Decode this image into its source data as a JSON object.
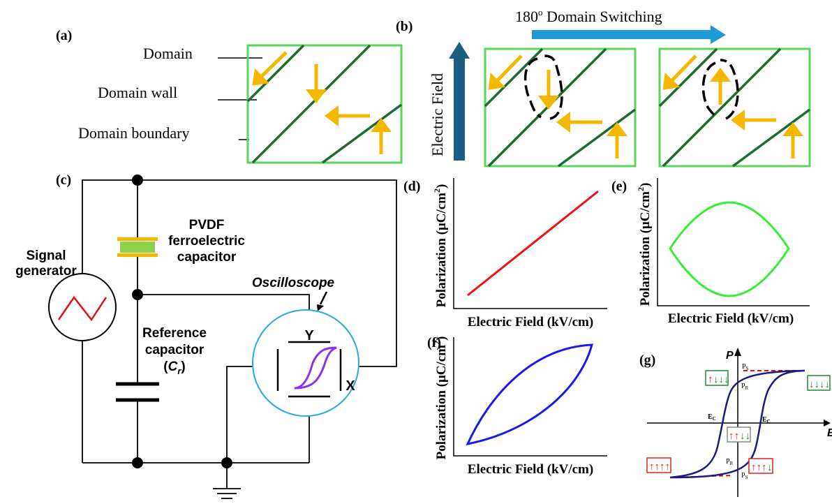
{
  "panels": {
    "a": "(a)",
    "b": "(b)",
    "c": "(c)",
    "d": "(d)",
    "e": "(e)",
    "f": "(f)",
    "g": "(g)"
  },
  "domain_labels": {
    "domain": "Domain",
    "wall": "Domain wall",
    "boundary": "Domain boundary"
  },
  "switching": {
    "title": "180",
    "title_sup": "o",
    "title_rest": " Domain Switching",
    "field": "Electric Field"
  },
  "circuit": {
    "signal": [
      "Signal",
      "generator"
    ],
    "pvdf": [
      "PVDF",
      "ferroelectric",
      "capacitor"
    ],
    "oscilloscope": "Oscilloscope",
    "reference": [
      "Reference",
      "capacitor"
    ],
    "cr_open": "(",
    "cr_c": "C",
    "cr_r": "r",
    "cr_close": ")",
    "y": "Y",
    "x": "X"
  },
  "plots": {
    "ylabel_main": "Polarization (μC/cm",
    "ylabel_sup": "2",
    "ylabel_close": ")",
    "xlabel": "Electric Field (kV/cm)"
  },
  "hysteresis": {
    "p": "P",
    "e": "E",
    "ps_top": "P",
    "ps_top_sub": "S",
    "pr_top": "P",
    "pr_top_sub": "R",
    "ec_left": "E",
    "ec_left_sub": "C",
    "ec_right": "E",
    "ec_right_sub": "C",
    "pr_bottom": "P",
    "pr_bottom_sub": "R",
    "ps_bottom": "P",
    "ps_bottom_sub": "S"
  },
  "colors": {
    "domain_box": "#5ad65a",
    "domain_wall": "#1e6b32",
    "arrow": "#f5b800",
    "switch_arrow": "#1e9bd7",
    "field_arrow": "#1b5e80",
    "linear": "#ee1111",
    "paraelectric": "#33ee33",
    "lossy": "#1a1aee",
    "hysteresis": "#1a1a80",
    "scope_circle": "#2aa8e0",
    "scope_loop": "#9030ee",
    "pvdf_plate": "#f5b800",
    "pvdf_fill": "#8fd14f",
    "up_box": "#e02020",
    "down_box": "#1f8a30",
    "saturation": "#dd1111"
  }
}
